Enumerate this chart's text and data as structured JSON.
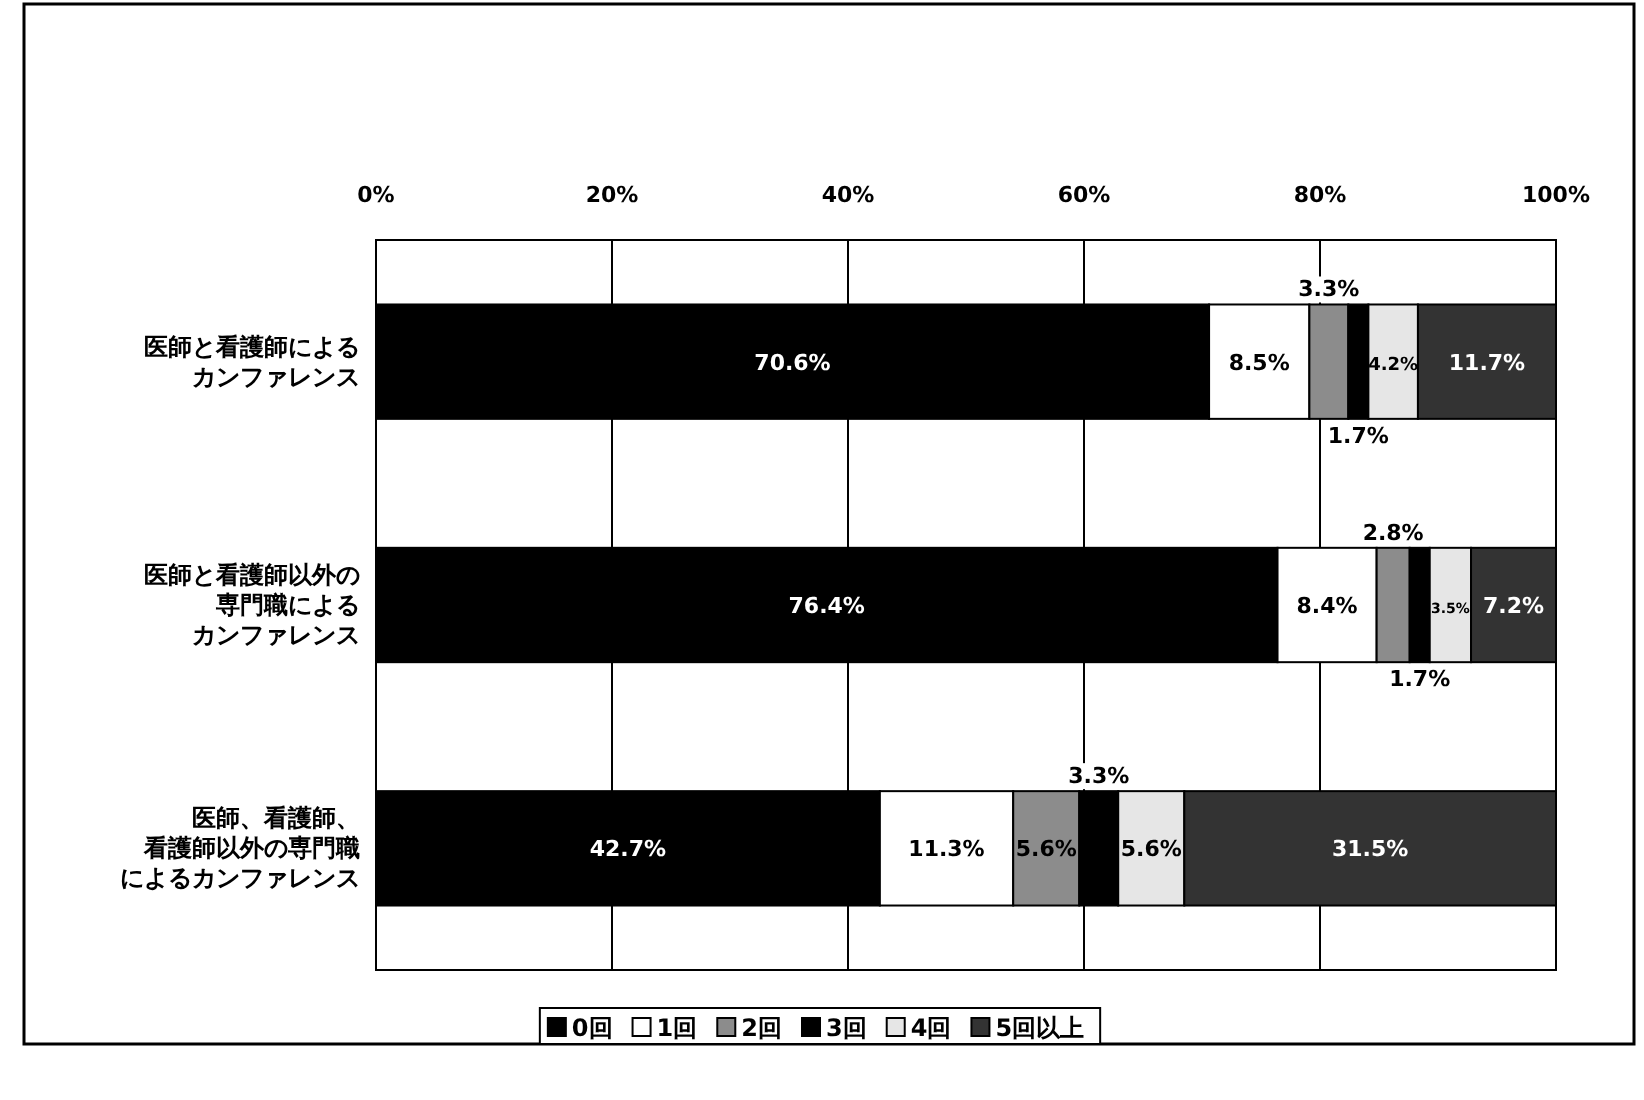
{
  "chart_data": {
    "type": "bar",
    "orientation": "horizontal",
    "stacked": true,
    "grid": "x",
    "legend": "bottom",
    "categories": [
      "医師と看護師によるカンファレンス",
      "医師と看護師以外の専門職によるカンファレンス",
      "医師、看護師、看護師以外の専門職によるカンファレンス"
    ],
    "xlim": [
      0,
      100
    ],
    "xticks": [
      {
        "value": 0,
        "label": "0%"
      },
      {
        "value": 20,
        "label": "20%"
      },
      {
        "value": 40,
        "label": "40%"
      },
      {
        "value": 60,
        "label": "60%"
      },
      {
        "value": 80,
        "label": "80%"
      },
      {
        "value": 100,
        "label": "100%"
      }
    ],
    "series": [
      {
        "name": "0回",
        "color": "#000000",
        "values": [
          70.6,
          76.4,
          42.7
        ],
        "value_labels": [
          "70.6%",
          "76.4%",
          "42.7%"
        ]
      },
      {
        "name": "1回",
        "color": "#ffffff",
        "values": [
          8.5,
          8.4,
          11.3
        ],
        "value_labels": [
          "8.5%",
          "8.4%",
          "11.3%"
        ]
      },
      {
        "name": "2回",
        "color": "#8c8c8c",
        "values": [
          3.3,
          2.8,
          5.6
        ],
        "value_labels": [
          "3.3%",
          "2.8%",
          "5.6%"
        ]
      },
      {
        "name": "3回",
        "color": "#000000",
        "values": [
          1.7,
          1.7,
          3.3
        ],
        "value_labels": [
          "1.7%",
          "1.7%",
          "3.3%"
        ]
      },
      {
        "name": "4回",
        "color": "#e6e6e6",
        "values": [
          4.2,
          3.5,
          5.6
        ],
        "value_labels": [
          "4.2%",
          "3.5%",
          "5.6%"
        ]
      },
      {
        "name": "5回以上",
        "color": "#333333",
        "values": [
          11.7,
          7.2,
          31.5
        ],
        "value_labels": [
          "11.7%",
          "7.2%",
          "31.5%"
        ]
      }
    ]
  }
}
